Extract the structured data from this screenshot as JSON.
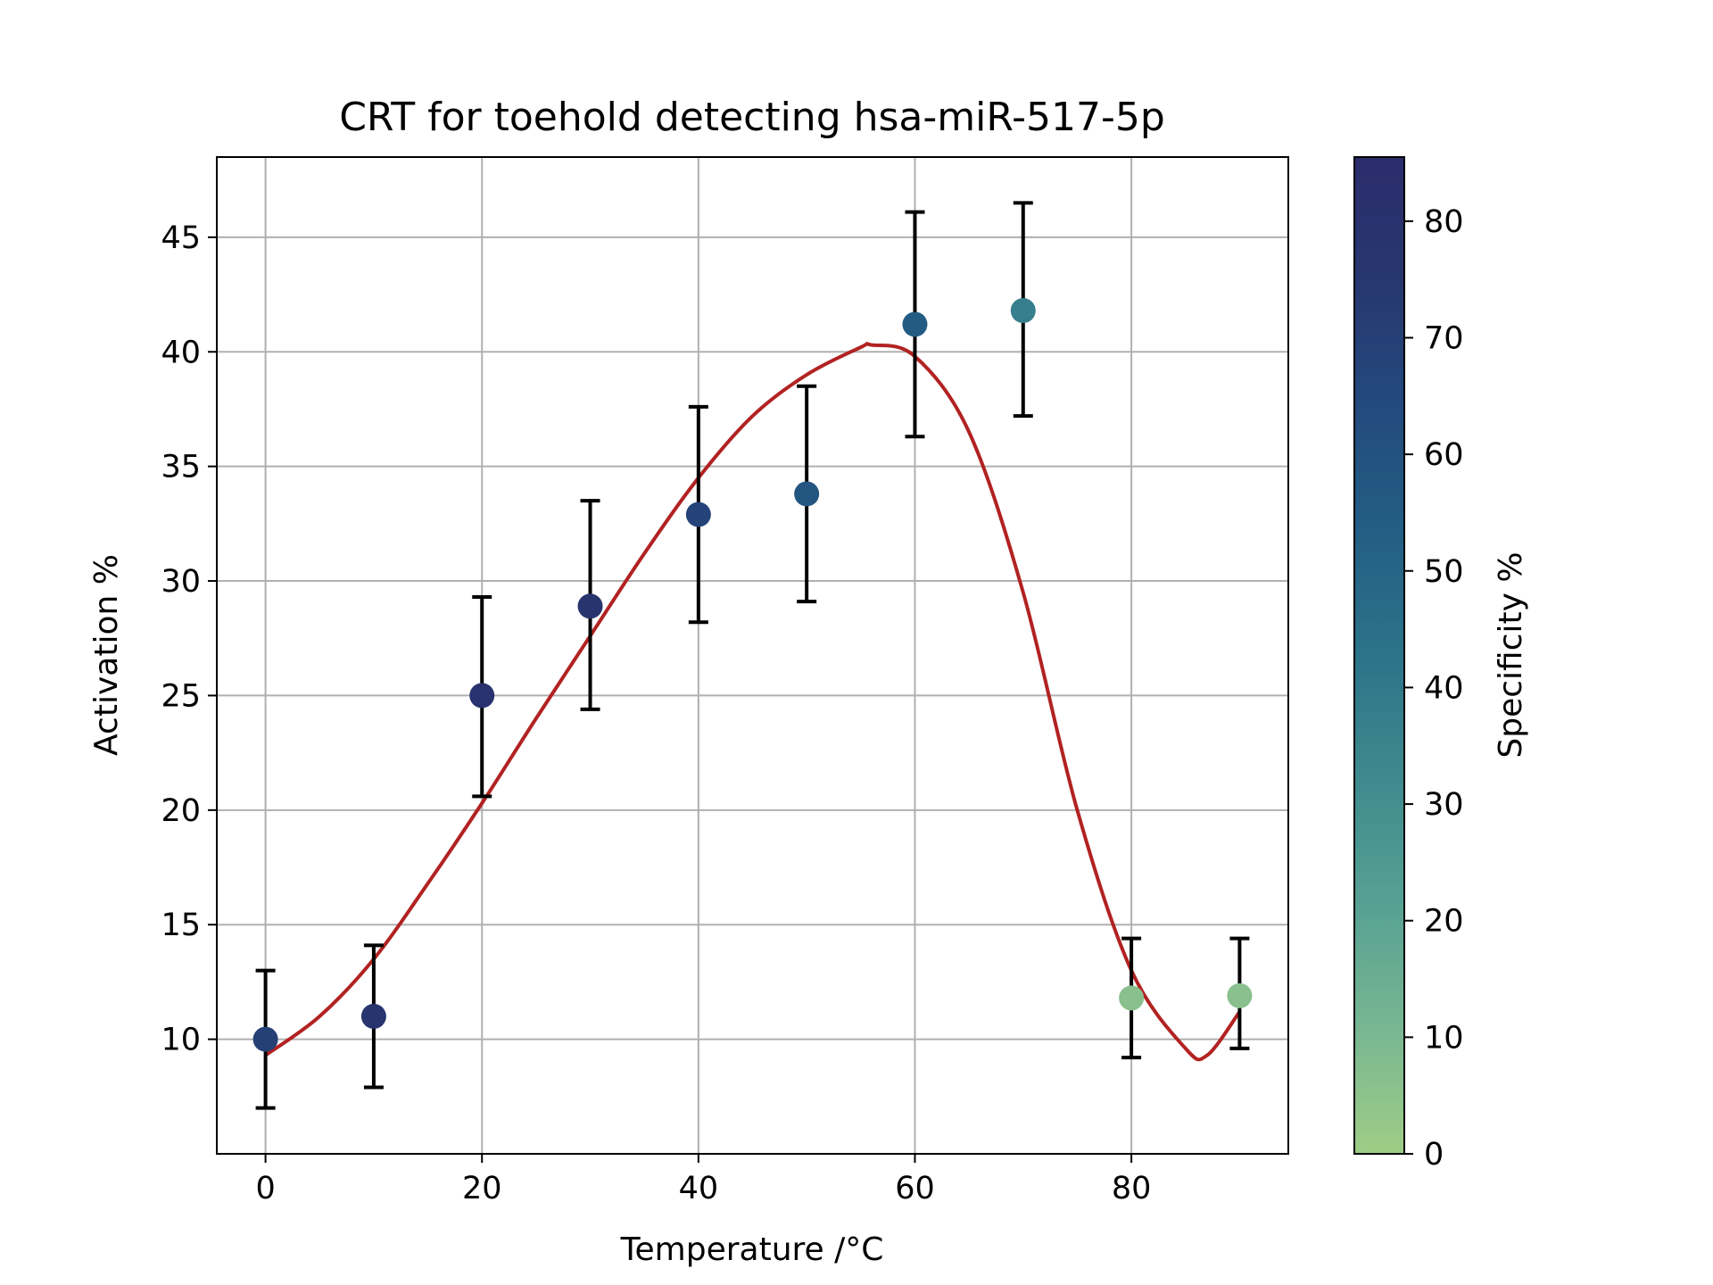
{
  "chart_data": {
    "type": "scatter",
    "title": "CRT for toehold detecting hsa-miR-517-5p",
    "xlabel": "Temperature /°C",
    "ylabel": "Activation %",
    "xlim": [
      -4.5,
      94.5
    ],
    "ylim": [
      5.0,
      48.5
    ],
    "xticks": [
      0,
      20,
      40,
      60,
      80
    ],
    "yticks": [
      10,
      15,
      20,
      25,
      30,
      35,
      40,
      45
    ],
    "grid": true,
    "points": [
      {
        "x": 0,
        "y": 10.0,
        "err_low": 7.0,
        "err_high": 13.0,
        "specificity": 70
      },
      {
        "x": 10,
        "y": 11.0,
        "err_low": 7.9,
        "err_high": 14.1,
        "specificity": 78
      },
      {
        "x": 20,
        "y": 25.0,
        "err_low": 20.6,
        "err_high": 29.3,
        "specificity": 80
      },
      {
        "x": 30,
        "y": 28.9,
        "err_low": 24.4,
        "err_high": 33.5,
        "specificity": 78
      },
      {
        "x": 40,
        "y": 32.9,
        "err_low": 28.2,
        "err_high": 37.6,
        "specificity": 68
      },
      {
        "x": 50,
        "y": 33.8,
        "err_low": 29.1,
        "err_high": 38.5,
        "specificity": 58
      },
      {
        "x": 60,
        "y": 41.2,
        "err_low": 36.3,
        "err_high": 46.1,
        "specificity": 55
      },
      {
        "x": 70,
        "y": 41.8,
        "err_low": 37.2,
        "err_high": 46.5,
        "specificity": 37
      },
      {
        "x": 80,
        "y": 11.8,
        "err_low": 9.2,
        "err_high": 14.4,
        "specificity": 6
      },
      {
        "x": 90,
        "y": 11.9,
        "err_low": 9.6,
        "err_high": 14.4,
        "specificity": 6
      }
    ],
    "fit_curve": {
      "color": "#b22222",
      "x": [
        0,
        5,
        10,
        15,
        20,
        25,
        30,
        35,
        40,
        45,
        50,
        55,
        56,
        60,
        65,
        70,
        75,
        80,
        85,
        87,
        90
      ],
      "y": [
        9.3,
        11.0,
        13.5,
        16.8,
        20.3,
        24.0,
        27.6,
        31.2,
        34.5,
        37.2,
        39.0,
        40.2,
        40.3,
        39.8,
        36.5,
        29.5,
        20.0,
        13.0,
        9.6,
        9.3,
        11.2
      ]
    },
    "colorbar": {
      "label": "Specificity %",
      "range": [
        0,
        85.5
      ],
      "ticks": [
        0,
        10,
        20,
        30,
        40,
        50,
        60,
        70,
        80
      ],
      "colormap": [
        "#9fcd86",
        "#78b692",
        "#57a193",
        "#3f8a8e",
        "#2c7389",
        "#235e84",
        "#234a7d",
        "#27376f",
        "#2b2d6c"
      ]
    }
  }
}
